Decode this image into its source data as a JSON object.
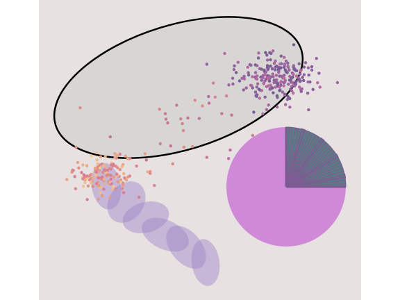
{
  "chart_data": {
    "type": "scatter",
    "title": "",
    "xlabel": "",
    "ylabel": "",
    "axes_visible": false,
    "grid": false,
    "background": "#e7e1e2",
    "outer_background": "#ffffff",
    "scatter_clusters": [
      {
        "cluster": "warm",
        "center": [
          0.2,
          0.42
        ],
        "spread": [
          0.055,
          0.035
        ],
        "count": 140,
        "gradient": [
          "#f2c98f",
          "#e08d83",
          "#d7789a"
        ]
      },
      {
        "cluster": "cool",
        "center": [
          0.73,
          0.74
        ],
        "spread": [
          0.06,
          0.04
        ],
        "count": 230,
        "gradient": [
          "#c06aa1",
          "#8e62a0",
          "#6d5a8f"
        ]
      },
      {
        "cluster": "bridge",
        "center": [
          0.47,
          0.58
        ],
        "spread": [
          0.12,
          0.06
        ],
        "count": 30,
        "gradient": [
          "#e08d83",
          "#c06aa1"
        ]
      }
    ],
    "confidence_ellipse": {
      "fill": "#d7d6d4",
      "stroke": "#000000"
    },
    "ellipse_chain": {
      "count": 6,
      "fill": "#9d86c8",
      "opacity": 0.45
    },
    "pie": {
      "main_fill": "#cf89d6",
      "wedge_fill": "#5a7c82",
      "wedge_stroke": "#7d5c93",
      "main_fraction": 0.75,
      "wedge_count": 30
    }
  }
}
